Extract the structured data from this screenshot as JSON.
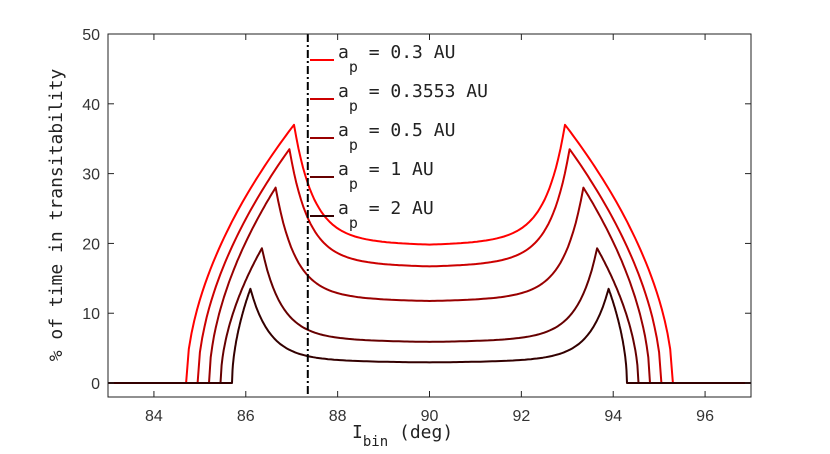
{
  "chart_data": {
    "type": "line",
    "xlabel": {
      "main": "I",
      "sub": "bin",
      "suffix": " (deg)"
    },
    "ylabel": "% of time in transitability",
    "xlim": [
      83,
      97
    ],
    "ylim": [
      -2,
      50
    ],
    "x_ticks": [
      84,
      86,
      88,
      90,
      92,
      94,
      96
    ],
    "y_ticks": [
      0,
      10,
      20,
      30,
      40,
      50
    ],
    "grid": false,
    "legend_position": "top-center",
    "vertical_line": {
      "x": 87.35,
      "style": "dash-dot",
      "color": "#000000"
    },
    "series": [
      {
        "name": "0.3 AU",
        "legend": {
          "main": "a",
          "sub": "p",
          "rest": " = 0.3 AU"
        },
        "color": "#ff0000",
        "edge_x": 84.7,
        "peak_x": 87.05,
        "peak": 37.0,
        "center": 19.6
      },
      {
        "name": "0.3553 AU",
        "legend": {
          "main": "a",
          "sub": "p",
          "rest": " = 0.3553 AU"
        },
        "color": "#cc0000",
        "edge_x": 84.95,
        "peak_x": 86.95,
        "peak": 33.5,
        "center": 16.5
      },
      {
        "name": "0.5 AU",
        "legend": {
          "main": "a",
          "sub": "p",
          "rest": " = 0.5 AU"
        },
        "color": "#990000",
        "edge_x": 85.2,
        "peak_x": 86.65,
        "peak": 28.0,
        "center": 11.6
      },
      {
        "name": "1 AU",
        "legend": {
          "main": "a",
          "sub": "p",
          "rest": " = 1 AU"
        },
        "color": "#660000",
        "edge_x": 85.45,
        "peak_x": 86.35,
        "peak": 19.3,
        "center": 5.8
      },
      {
        "name": "2 AU",
        "legend": {
          "main": "a",
          "sub": "p",
          "rest": " = 2 AU"
        },
        "color": "#330000",
        "edge_x": 85.7,
        "peak_x": 86.1,
        "peak": 13.5,
        "center": 2.9
      }
    ]
  }
}
